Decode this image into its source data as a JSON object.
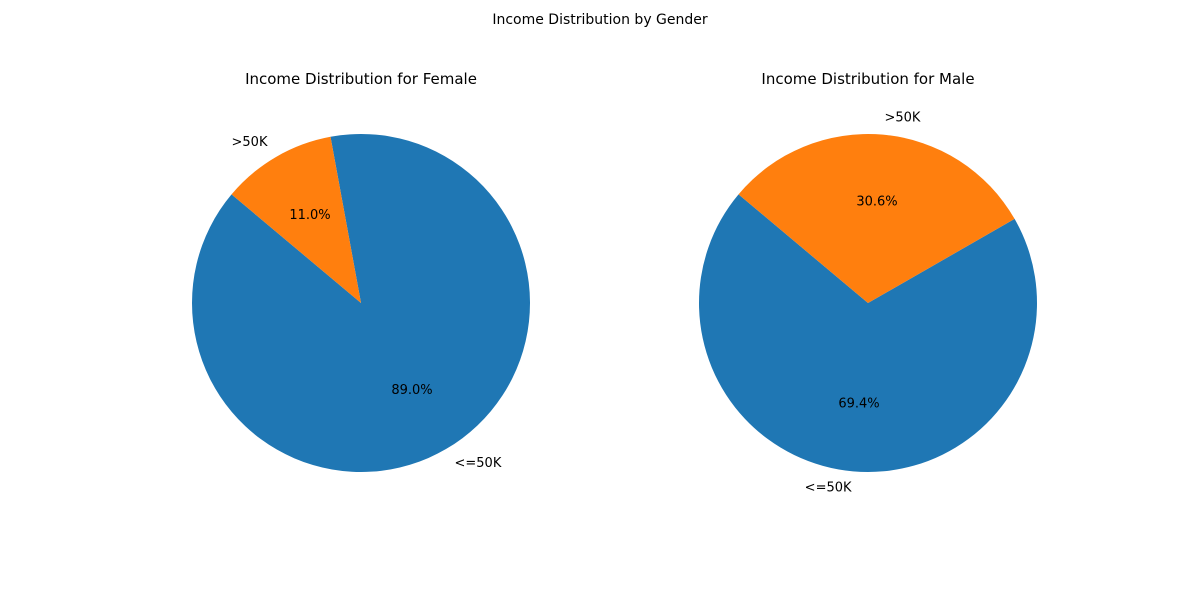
{
  "suptitle": "Income Distribution by Gender",
  "colors": {
    "le50k": "#1f77b4",
    "gt50k": "#ff7f0e"
  },
  "chart_data": [
    {
      "type": "pie",
      "title": "Income Distribution for Female",
      "labels": [
        "<=50K",
        ">50K"
      ],
      "values": [
        89.0,
        11.0
      ],
      "pct_labels": [
        "89.0%",
        "11.0%"
      ],
      "start_angle_deg": 140,
      "direction": "counterclockwise"
    },
    {
      "type": "pie",
      "title": "Income Distribution for Male",
      "labels": [
        "<=50K",
        ">50K"
      ],
      "values": [
        69.4,
        30.6
      ],
      "pct_labels": [
        "69.4%",
        "30.6%"
      ],
      "start_angle_deg": 140,
      "direction": "counterclockwise"
    }
  ]
}
